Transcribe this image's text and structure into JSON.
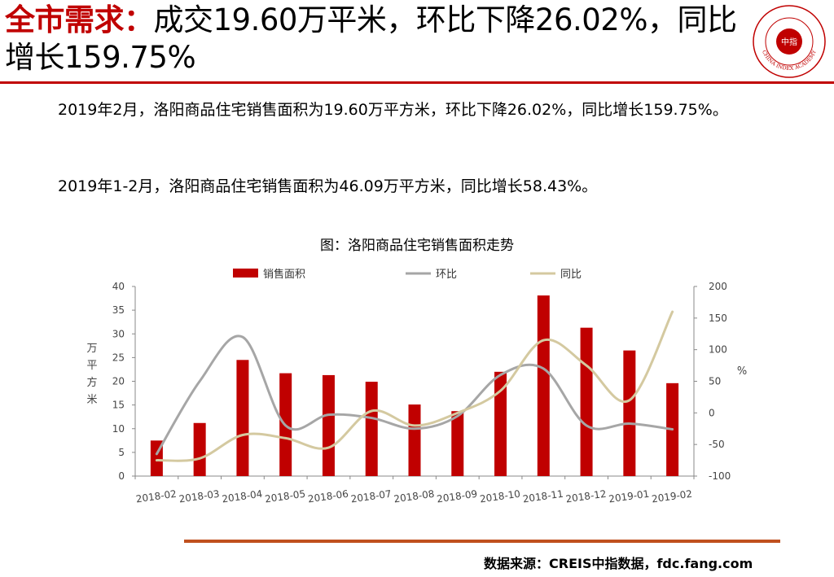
{
  "header": {
    "keyword": "全市需求：",
    "headline": "成交19.60万平米，环比下降26.02%，同比增长159.75%"
  },
  "logo": {
    "center_text": "中指",
    "ring_text": "CHINA INDEX ACADEMY"
  },
  "paragraphs": [
    "2019年2月，洛阳商品住宅销售面积为19.60万平方米，环比下降26.02%，同比增长159.75%。",
    "2019年1-2月，洛阳商品住宅销售面积为46.09万平方米，同比增长58.43%。"
  ],
  "chart_data": {
    "type": "bar",
    "title": "图：洛阳商品住宅销售面积走势",
    "categories": [
      "2018-02",
      "2018-03",
      "2018-04",
      "2018-05",
      "2018-06",
      "2018-07",
      "2018-08",
      "2018-09",
      "2018-10",
      "2018-11",
      "2018-12",
      "2019-01",
      "2019-02"
    ],
    "series": [
      {
        "name": "销售面积",
        "type": "bar",
        "axis": "left",
        "color": "#c00000",
        "values": [
          7.5,
          11.2,
          24.5,
          21.7,
          21.3,
          19.9,
          15.1,
          13.7,
          22.0,
          38.1,
          31.3,
          26.5,
          19.6
        ]
      },
      {
        "name": "环比",
        "type": "line",
        "axis": "right",
        "color": "#a6a6a6",
        "values": [
          -65,
          50,
          120,
          -20,
          -3,
          -8,
          -25,
          -5,
          60,
          70,
          -20,
          -17,
          -26
        ]
      },
      {
        "name": "同比",
        "type": "line",
        "axis": "right",
        "color": "#d4c9a0",
        "values": [
          -75,
          -72,
          -35,
          -40,
          -55,
          3,
          -20,
          0,
          35,
          115,
          75,
          20,
          160
        ]
      }
    ],
    "y_left": {
      "label": "万平方米",
      "range": [
        0,
        40
      ],
      "ticks": [
        0,
        5,
        10,
        15,
        20,
        25,
        30,
        35,
        40
      ]
    },
    "y_right": {
      "label": "%",
      "range": [
        -100,
        200
      ],
      "ticks": [
        -100,
        -50,
        0,
        50,
        100,
        150,
        200
      ]
    },
    "legend_position": "top",
    "grid": false
  },
  "source": "数据来源：CREIS中指数据，fdc.fang.com"
}
